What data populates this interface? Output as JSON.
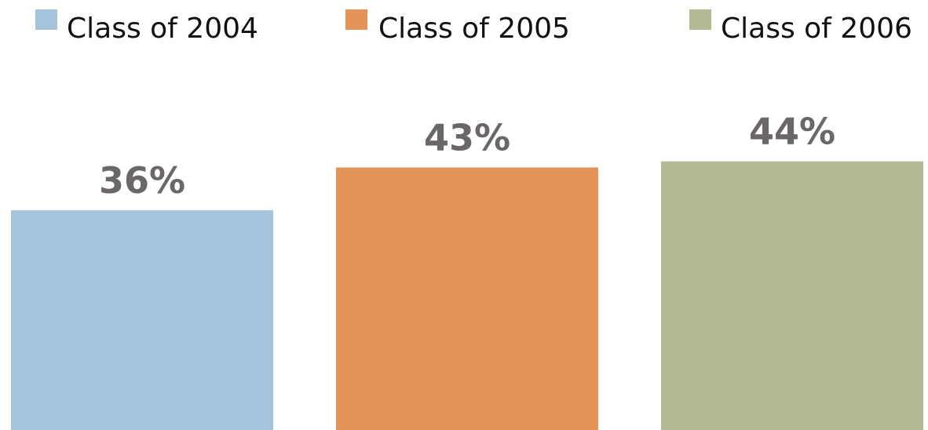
{
  "chart_data": {
    "type": "bar",
    "series": [
      {
        "name": "Class of 2004",
        "color": "#a5c3da",
        "values": [
          36
        ],
        "value_labels": [
          "36%"
        ]
      },
      {
        "name": "Class of 2005",
        "color": "#e49458",
        "values": [
          43
        ],
        "value_labels": [
          "43%"
        ]
      },
      {
        "name": "Class of 2006",
        "color": "#b4b993",
        "values": [
          44
        ],
        "value_labels": [
          "44%"
        ]
      }
    ],
    "ylim": [
      0,
      50
    ]
  }
}
